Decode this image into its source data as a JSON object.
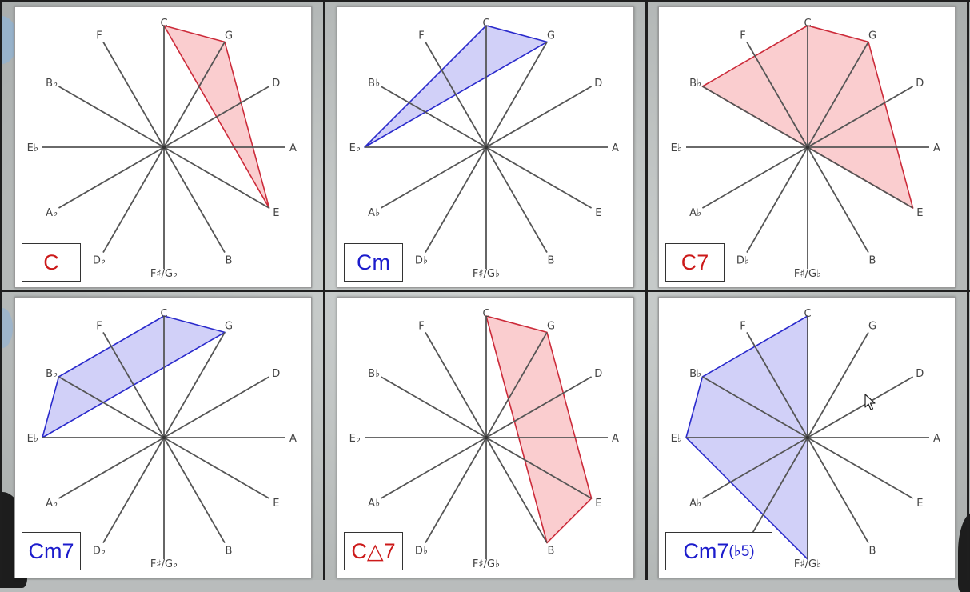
{
  "note_labels": [
    "C",
    "G",
    "D",
    "A",
    "E",
    "B",
    "F♯/G♭",
    "D♭",
    "A♭",
    "E♭",
    "B♭",
    "F"
  ],
  "colors": {
    "red_fill": "#f9c4c7",
    "red_stroke": "#cc2b3a",
    "red_text": "#cc1a1a",
    "blue_fill": "#c9c8f7",
    "blue_stroke": "#2a2acc",
    "blue_text": "#1c1ccc",
    "spoke": "#555555"
  },
  "panels": [
    {
      "name": "C",
      "chord_label": "C",
      "suffix": "",
      "color": "red",
      "notes": [
        "C",
        "G",
        "E"
      ]
    },
    {
      "name": "Cm",
      "chord_label": "Cm",
      "suffix": "",
      "color": "blue",
      "notes": [
        "C",
        "G",
        "E♭"
      ]
    },
    {
      "name": "C7",
      "chord_label": "C7",
      "suffix": "",
      "color": "red",
      "notes": [
        "C",
        "G",
        "E",
        "B♭"
      ]
    },
    {
      "name": "Cm7",
      "chord_label": "Cm7",
      "suffix": "",
      "color": "blue",
      "notes": [
        "C",
        "G",
        "E♭",
        "B♭"
      ]
    },
    {
      "name": "CΔ7",
      "chord_label": "C△7",
      "suffix": "",
      "color": "red",
      "notes": [
        "C",
        "G",
        "E",
        "B"
      ]
    },
    {
      "name": "Cm7(♭5)",
      "chord_label": "Cm7",
      "suffix": "(♭5)",
      "color": "blue",
      "notes": [
        "C",
        "G♭",
        "E♭",
        "B♭"
      ]
    }
  ]
}
